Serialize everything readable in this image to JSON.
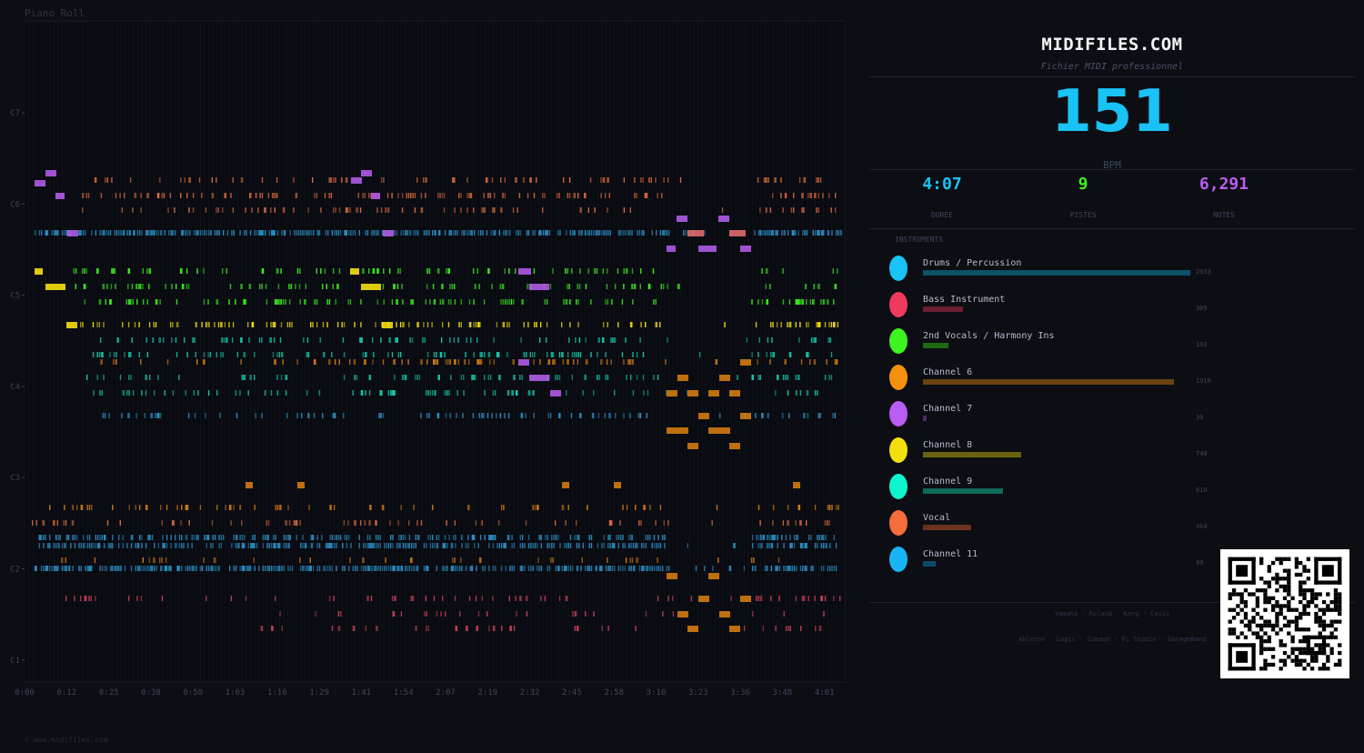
{
  "piano_roll": {
    "label": "Piano Roll",
    "time_labels": [
      "0:00",
      "0:12",
      "0:25",
      "0:38",
      "0:50",
      "1:03",
      "1:16",
      "1:29",
      "1:41",
      "1:54",
      "2:07",
      "2:19",
      "2:32",
      "2:45",
      "2:58",
      "3:10",
      "3:23",
      "3:36",
      "3:48",
      "4:01"
    ],
    "octave_labels": [
      "C7",
      "C6",
      "C5",
      "C4",
      "C3",
      "C2",
      "C1"
    ],
    "duration_seconds": 247,
    "pitch_range": [
      22,
      100
    ]
  },
  "header": {
    "title": "MIDIFILES.COM",
    "subtitle": "Fichier MIDI professionnel"
  },
  "bpm": {
    "value": "151",
    "label": "BPM"
  },
  "stats": [
    {
      "value": "4:07",
      "label": "DUREE",
      "color": "#19c3f5"
    },
    {
      "value": "9",
      "label": "PISTES",
      "color": "#3cf41f"
    },
    {
      "value": "6,291",
      "label": "NOTES",
      "color": "#bb5cf2"
    }
  ],
  "instruments": {
    "heading": "INSTRUMENTS",
    "max_count": 2033,
    "items": [
      {
        "name": "Drums / Percussion",
        "count": "2033",
        "count_value": 2033,
        "color": "#19c3f5",
        "bar_color": "#0e5068"
      },
      {
        "name": "Bass Instrument",
        "count": "305",
        "count_value": 305,
        "color": "#f0395e",
        "bar_color": "#6a1e30"
      },
      {
        "name": "2nd Vocals / Harmony Ins",
        "count": "191",
        "count_value": 191,
        "color": "#3cf41f",
        "bar_color": "#1e6a12"
      },
      {
        "name": "Channel 6",
        "count": "1910",
        "count_value": 1910,
        "color": "#f5900d",
        "bar_color": "#6a420f"
      },
      {
        "name": "Channel 7",
        "count": "30",
        "count_value": 30,
        "color": "#bb5cf2",
        "bar_color": "#4e2a6a"
      },
      {
        "name": "Channel 8",
        "count": "749",
        "count_value": 749,
        "color": "#f5de0d",
        "bar_color": "#6a620f"
      },
      {
        "name": "Channel 9",
        "count": "610",
        "count_value": 610,
        "color": "#0df5cd",
        "bar_color": "#0f6a5a"
      },
      {
        "name": "Vocal",
        "count": "364",
        "count_value": 364,
        "color": "#f56d3a",
        "bar_color": "#6a321e"
      },
      {
        "name": "Channel 11",
        "count": "99",
        "count_value": 99,
        "color": "#19b4f5",
        "bar_color": "#0e4a68"
      }
    ]
  },
  "footer": {
    "brands": "Yamaha · Roland · Korg · Casio",
    "daws": "Ableton · Logic · Cubase · FL Studio · GarageBand"
  },
  "copyright": "© www.midifiles.com"
}
